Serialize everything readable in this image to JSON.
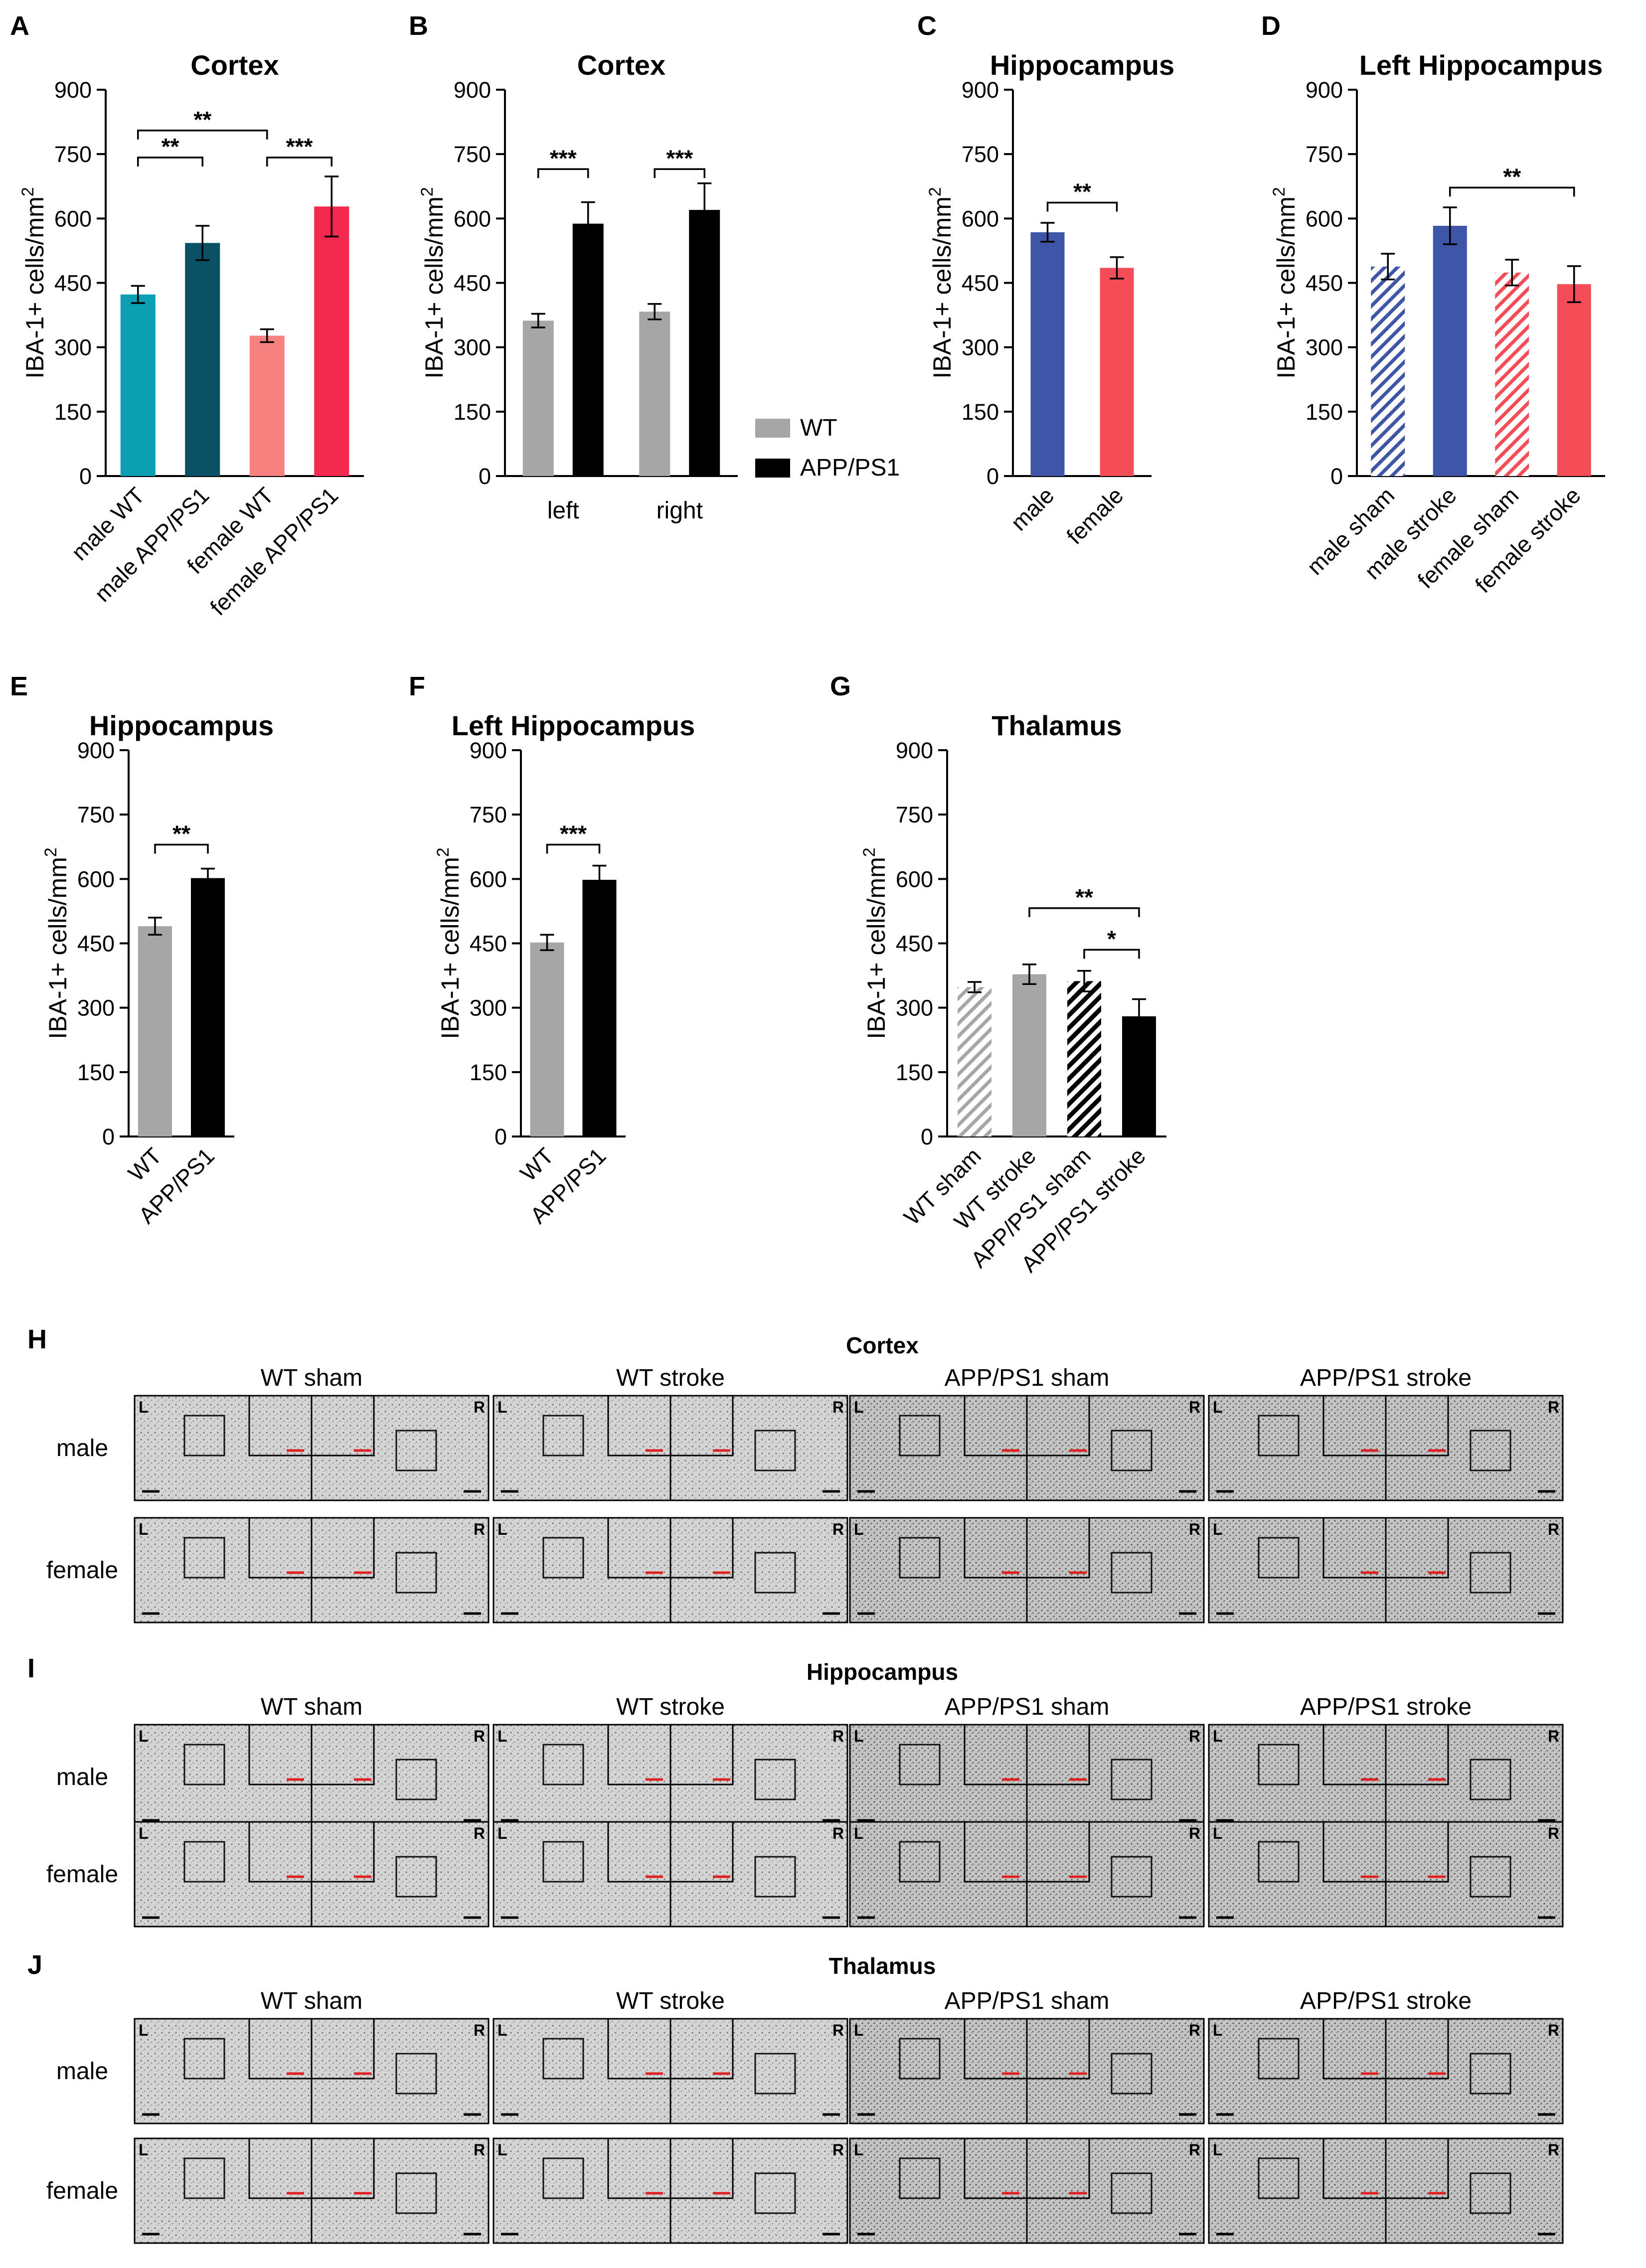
{
  "figure": {
    "colors": {
      "teal": "#0b9fb3",
      "dark_teal": "#0a5165",
      "pink": "#f78080",
      "crimson": "#f2284f",
      "grey": "#a6a6a6",
      "black": "#000000",
      "blue": "#3f55a8",
      "red": "#f44d58"
    }
  },
  "chart_data": [
    {
      "id": "A",
      "letter": "A",
      "type": "bar",
      "title": "Cortex",
      "ylabel": "IBA-1+ cells/mm",
      "ylabel_sup": "2",
      "ylim": [
        0,
        900
      ],
      "yticks": [
        0,
        150,
        300,
        450,
        600,
        750,
        900
      ],
      "categories": [
        "male WT",
        "male APP/PS1",
        "female WT",
        "female APP/PS1"
      ],
      "values": [
        423,
        543,
        327,
        628
      ],
      "errors": [
        20,
        40,
        15,
        70
      ],
      "bar_colors": [
        "#0b9fb3",
        "#0a5165",
        "#f78080",
        "#f2284f"
      ],
      "hatched": [
        false,
        false,
        false,
        false
      ],
      "significance": [
        {
          "from": 0,
          "to": 2,
          "label": "**",
          "y": 805
        },
        {
          "from": 0,
          "to": 1,
          "label": "**",
          "y": 742
        },
        {
          "from": 2,
          "to": 3,
          "label": "***",
          "y": 742
        }
      ]
    },
    {
      "id": "B",
      "letter": "B",
      "type": "grouped-bar",
      "title": "Cortex",
      "ylabel": "IBA-1+ cells/mm",
      "ylabel_sup": "2",
      "ylim": [
        0,
        900
      ],
      "yticks": [
        0,
        150,
        300,
        450,
        600,
        750,
        900
      ],
      "categories": [
        "left",
        "right"
      ],
      "series": [
        {
          "name": "WT",
          "color": "#a6a6a6",
          "values": [
            362,
            383
          ],
          "errors": [
            16,
            18
          ]
        },
        {
          "name": "APP/PS1",
          "color": "#000000",
          "values": [
            588,
            620
          ],
          "errors": [
            50,
            62
          ]
        }
      ],
      "significance": [
        {
          "group": 0,
          "label": "***",
          "y": 715
        },
        {
          "group": 1,
          "label": "***",
          "y": 715
        }
      ]
    },
    {
      "id": "C",
      "letter": "C",
      "type": "bar",
      "title": "Hippocampus",
      "ylabel": "IBA-1+ cells/mm",
      "ylabel_sup": "2",
      "ylim": [
        0,
        900
      ],
      "yticks": [
        0,
        150,
        300,
        450,
        600,
        750,
        900
      ],
      "categories": [
        "male",
        "female"
      ],
      "values": [
        568,
        485
      ],
      "errors": [
        22,
        25
      ],
      "bar_colors": [
        "#3f55a8",
        "#f44d58"
      ],
      "hatched": [
        false,
        false
      ],
      "significance": [
        {
          "from": 0,
          "to": 1,
          "label": "**",
          "y": 637
        }
      ]
    },
    {
      "id": "D",
      "letter": "D",
      "type": "bar",
      "title": "Left Hippocampus",
      "ylabel": "IBA-1+ cells/mm",
      "ylabel_sup": "2",
      "ylim": [
        0,
        900
      ],
      "yticks": [
        0,
        150,
        300,
        450,
        600,
        750,
        900
      ],
      "categories": [
        "male sham",
        "male stroke",
        "female sham",
        "female stroke"
      ],
      "values": [
        488,
        583,
        474,
        447
      ],
      "errors": [
        30,
        43,
        30,
        42
      ],
      "bar_colors": [
        "#3f55a8",
        "#3f55a8",
        "#f44d58",
        "#f44d58"
      ],
      "hatched": [
        true,
        false,
        true,
        false
      ],
      "significance": [
        {
          "from": 1,
          "to": 3,
          "label": "**",
          "y": 672
        }
      ]
    },
    {
      "id": "E",
      "letter": "E",
      "type": "bar",
      "title": "Hippocampus",
      "ylabel": "IBA-1+ cells/mm",
      "ylabel_sup": "2",
      "ylim": [
        0,
        900
      ],
      "yticks": [
        0,
        150,
        300,
        450,
        600,
        750,
        900
      ],
      "categories": [
        "WT",
        "APP/PS1"
      ],
      "values": [
        490,
        602
      ],
      "errors": [
        20,
        22
      ],
      "bar_colors": [
        "#a6a6a6",
        "#000000"
      ],
      "hatched": [
        false,
        false
      ],
      "significance": [
        {
          "from": 0,
          "to": 1,
          "label": "**",
          "y": 680
        }
      ]
    },
    {
      "id": "F",
      "letter": "F",
      "type": "bar",
      "title": "Left Hippocampus",
      "ylabel": "IBA-1+ cells/mm",
      "ylabel_sup": "2",
      "ylim": [
        0,
        900
      ],
      "yticks": [
        0,
        150,
        300,
        450,
        600,
        750,
        900
      ],
      "categories": [
        "WT",
        "APP/PS1"
      ],
      "values": [
        452,
        598
      ],
      "errors": [
        18,
        33
      ],
      "bar_colors": [
        "#a6a6a6",
        "#000000"
      ],
      "hatched": [
        false,
        false
      ],
      "significance": [
        {
          "from": 0,
          "to": 1,
          "label": "***",
          "y": 680
        }
      ]
    },
    {
      "id": "G",
      "letter": "G",
      "type": "bar",
      "title": "Thalamus",
      "ylabel": "IBA-1+ cells/mm",
      "ylabel_sup": "2",
      "ylim": [
        0,
        900
      ],
      "yticks": [
        0,
        150,
        300,
        450,
        600,
        750,
        900
      ],
      "categories": [
        "WT sham",
        "WT stroke",
        "APP/PS1 sham",
        "APP/PS1 stroke"
      ],
      "values": [
        348,
        378,
        362,
        280
      ],
      "errors": [
        12,
        23,
        24,
        40
      ],
      "bar_colors": [
        "#a6a6a6",
        "#a6a6a6",
        "#000000",
        "#000000"
      ],
      "hatched": [
        true,
        false,
        true,
        false
      ],
      "significance": [
        {
          "from": 1,
          "to": 3,
          "label": "**",
          "y": 532
        },
        {
          "from": 2,
          "to": 3,
          "label": "*",
          "y": 435
        }
      ]
    }
  ],
  "micrographs": [
    {
      "letter": "H",
      "title": "Cortex",
      "columns": [
        "WT sham",
        "WT stroke",
        "APP/PS1 sham",
        "APP/PS1 stroke"
      ],
      "rows": [
        "male",
        "female"
      ],
      "side_left": "L",
      "side_right": "R"
    },
    {
      "letter": "I",
      "title": "Hippocampus",
      "columns": [
        "WT sham",
        "WT stroke",
        "APP/PS1 sham",
        "APP/PS1 stroke"
      ],
      "rows": [
        "male",
        "female"
      ],
      "side_left": "L",
      "side_right": "R"
    },
    {
      "letter": "J",
      "title": "Thalamus",
      "columns": [
        "WT sham",
        "WT stroke",
        "APP/PS1 sham",
        "APP/PS1 stroke"
      ],
      "rows": [
        "male",
        "female"
      ],
      "side_left": "L",
      "side_right": "R"
    }
  ]
}
